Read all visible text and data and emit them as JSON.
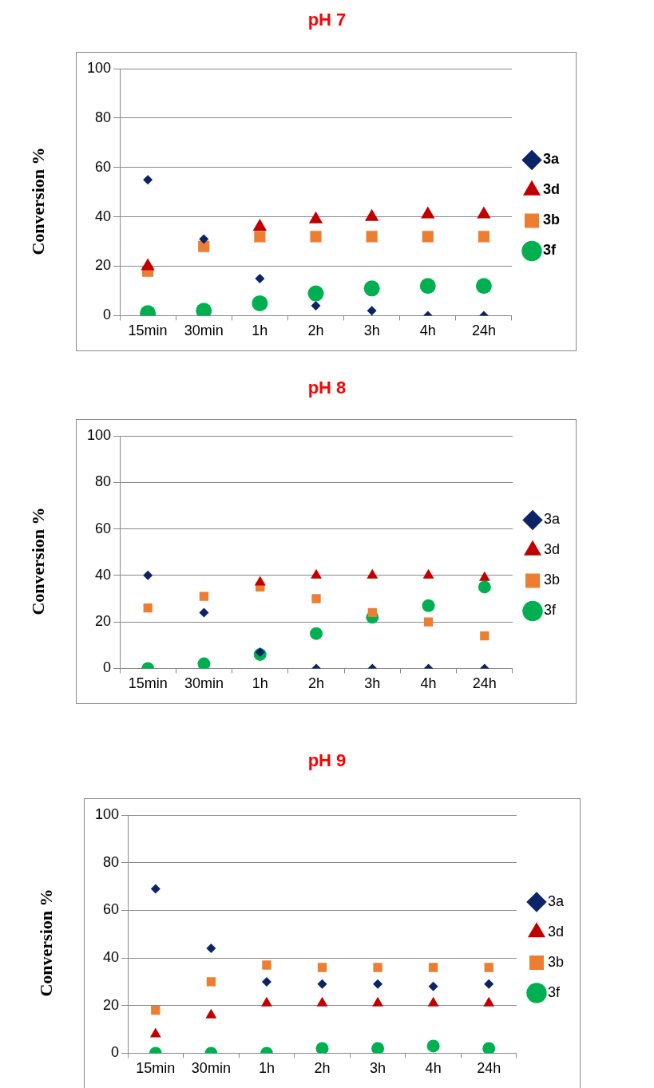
{
  "chart_data": [
    {
      "type": "scatter",
      "title": "pH 7",
      "ylabel": "Conversion %",
      "categories": [
        "15min",
        "30min",
        "1h",
        "2h",
        "3h",
        "4h",
        "24h"
      ],
      "ylim": [
        0,
        100
      ],
      "yticks": [
        0,
        20,
        40,
        60,
        80,
        100
      ],
      "grid": "y",
      "legend": "right",
      "series": [
        {
          "name": "3a",
          "color": "#0c2366",
          "marker": "diamond",
          "values": [
            55,
            31,
            15,
            4,
            2,
            0,
            0
          ]
        },
        {
          "name": "3d",
          "color": "#c00000",
          "marker": "triangle",
          "values": [
            20,
            null,
            36,
            39,
            40,
            41,
            41
          ]
        },
        {
          "name": "3b",
          "color": "#ed7d31",
          "marker": "square",
          "values": [
            18,
            28,
            32,
            32,
            32,
            32,
            32
          ]
        },
        {
          "name": "3f",
          "color": "#00b050",
          "marker": "circle",
          "values": [
            1,
            2,
            5,
            9,
            11,
            12,
            12
          ]
        }
      ]
    },
    {
      "type": "scatter",
      "title": "pH 8",
      "ylabel": "Conversion %",
      "categories": [
        "15min",
        "30min",
        "1h",
        "2h",
        "3h",
        "4h",
        "24h"
      ],
      "ylim": [
        0,
        100
      ],
      "yticks": [
        0,
        20,
        40,
        60,
        80,
        100
      ],
      "grid": "y",
      "legend": "right",
      "series": [
        {
          "name": "3a",
          "color": "#0c2366",
          "marker": "diamond",
          "values": [
            40,
            24,
            7,
            0,
            0,
            0,
            0
          ]
        },
        {
          "name": "3d",
          "color": "#c00000",
          "marker": "triangle",
          "values": [
            null,
            null,
            37,
            40,
            40,
            40,
            39
          ]
        },
        {
          "name": "3b",
          "color": "#ed7d31",
          "marker": "square",
          "values": [
            26,
            31,
            35,
            30,
            24,
            20,
            14
          ]
        },
        {
          "name": "3f",
          "color": "#00b050",
          "marker": "circle",
          "values": [
            0,
            2,
            6,
            15,
            22,
            27,
            35
          ]
        }
      ]
    },
    {
      "type": "scatter",
      "title": "pH 9",
      "ylabel": "Conversion %",
      "categories": [
        "15min",
        "30min",
        "1h",
        "2h",
        "3h",
        "4h",
        "24h"
      ],
      "ylim": [
        0,
        100
      ],
      "yticks": [
        0,
        20,
        40,
        60,
        80,
        100
      ],
      "grid": "y",
      "legend": "right",
      "series": [
        {
          "name": "3a",
          "color": "#0c2366",
          "marker": "diamond",
          "values": [
            69,
            44,
            30,
            29,
            29,
            28,
            29
          ]
        },
        {
          "name": "3d",
          "color": "#c00000",
          "marker": "triangle",
          "values": [
            8,
            16,
            21,
            21,
            21,
            21,
            21
          ]
        },
        {
          "name": "3b",
          "color": "#ed7d31",
          "marker": "square",
          "values": [
            18,
            30,
            37,
            36,
            36,
            36,
            36
          ]
        },
        {
          "name": "3f",
          "color": "#00b050",
          "marker": "circle",
          "values": [
            0,
            0,
            0,
            2,
            2,
            3,
            2
          ]
        }
      ]
    }
  ]
}
